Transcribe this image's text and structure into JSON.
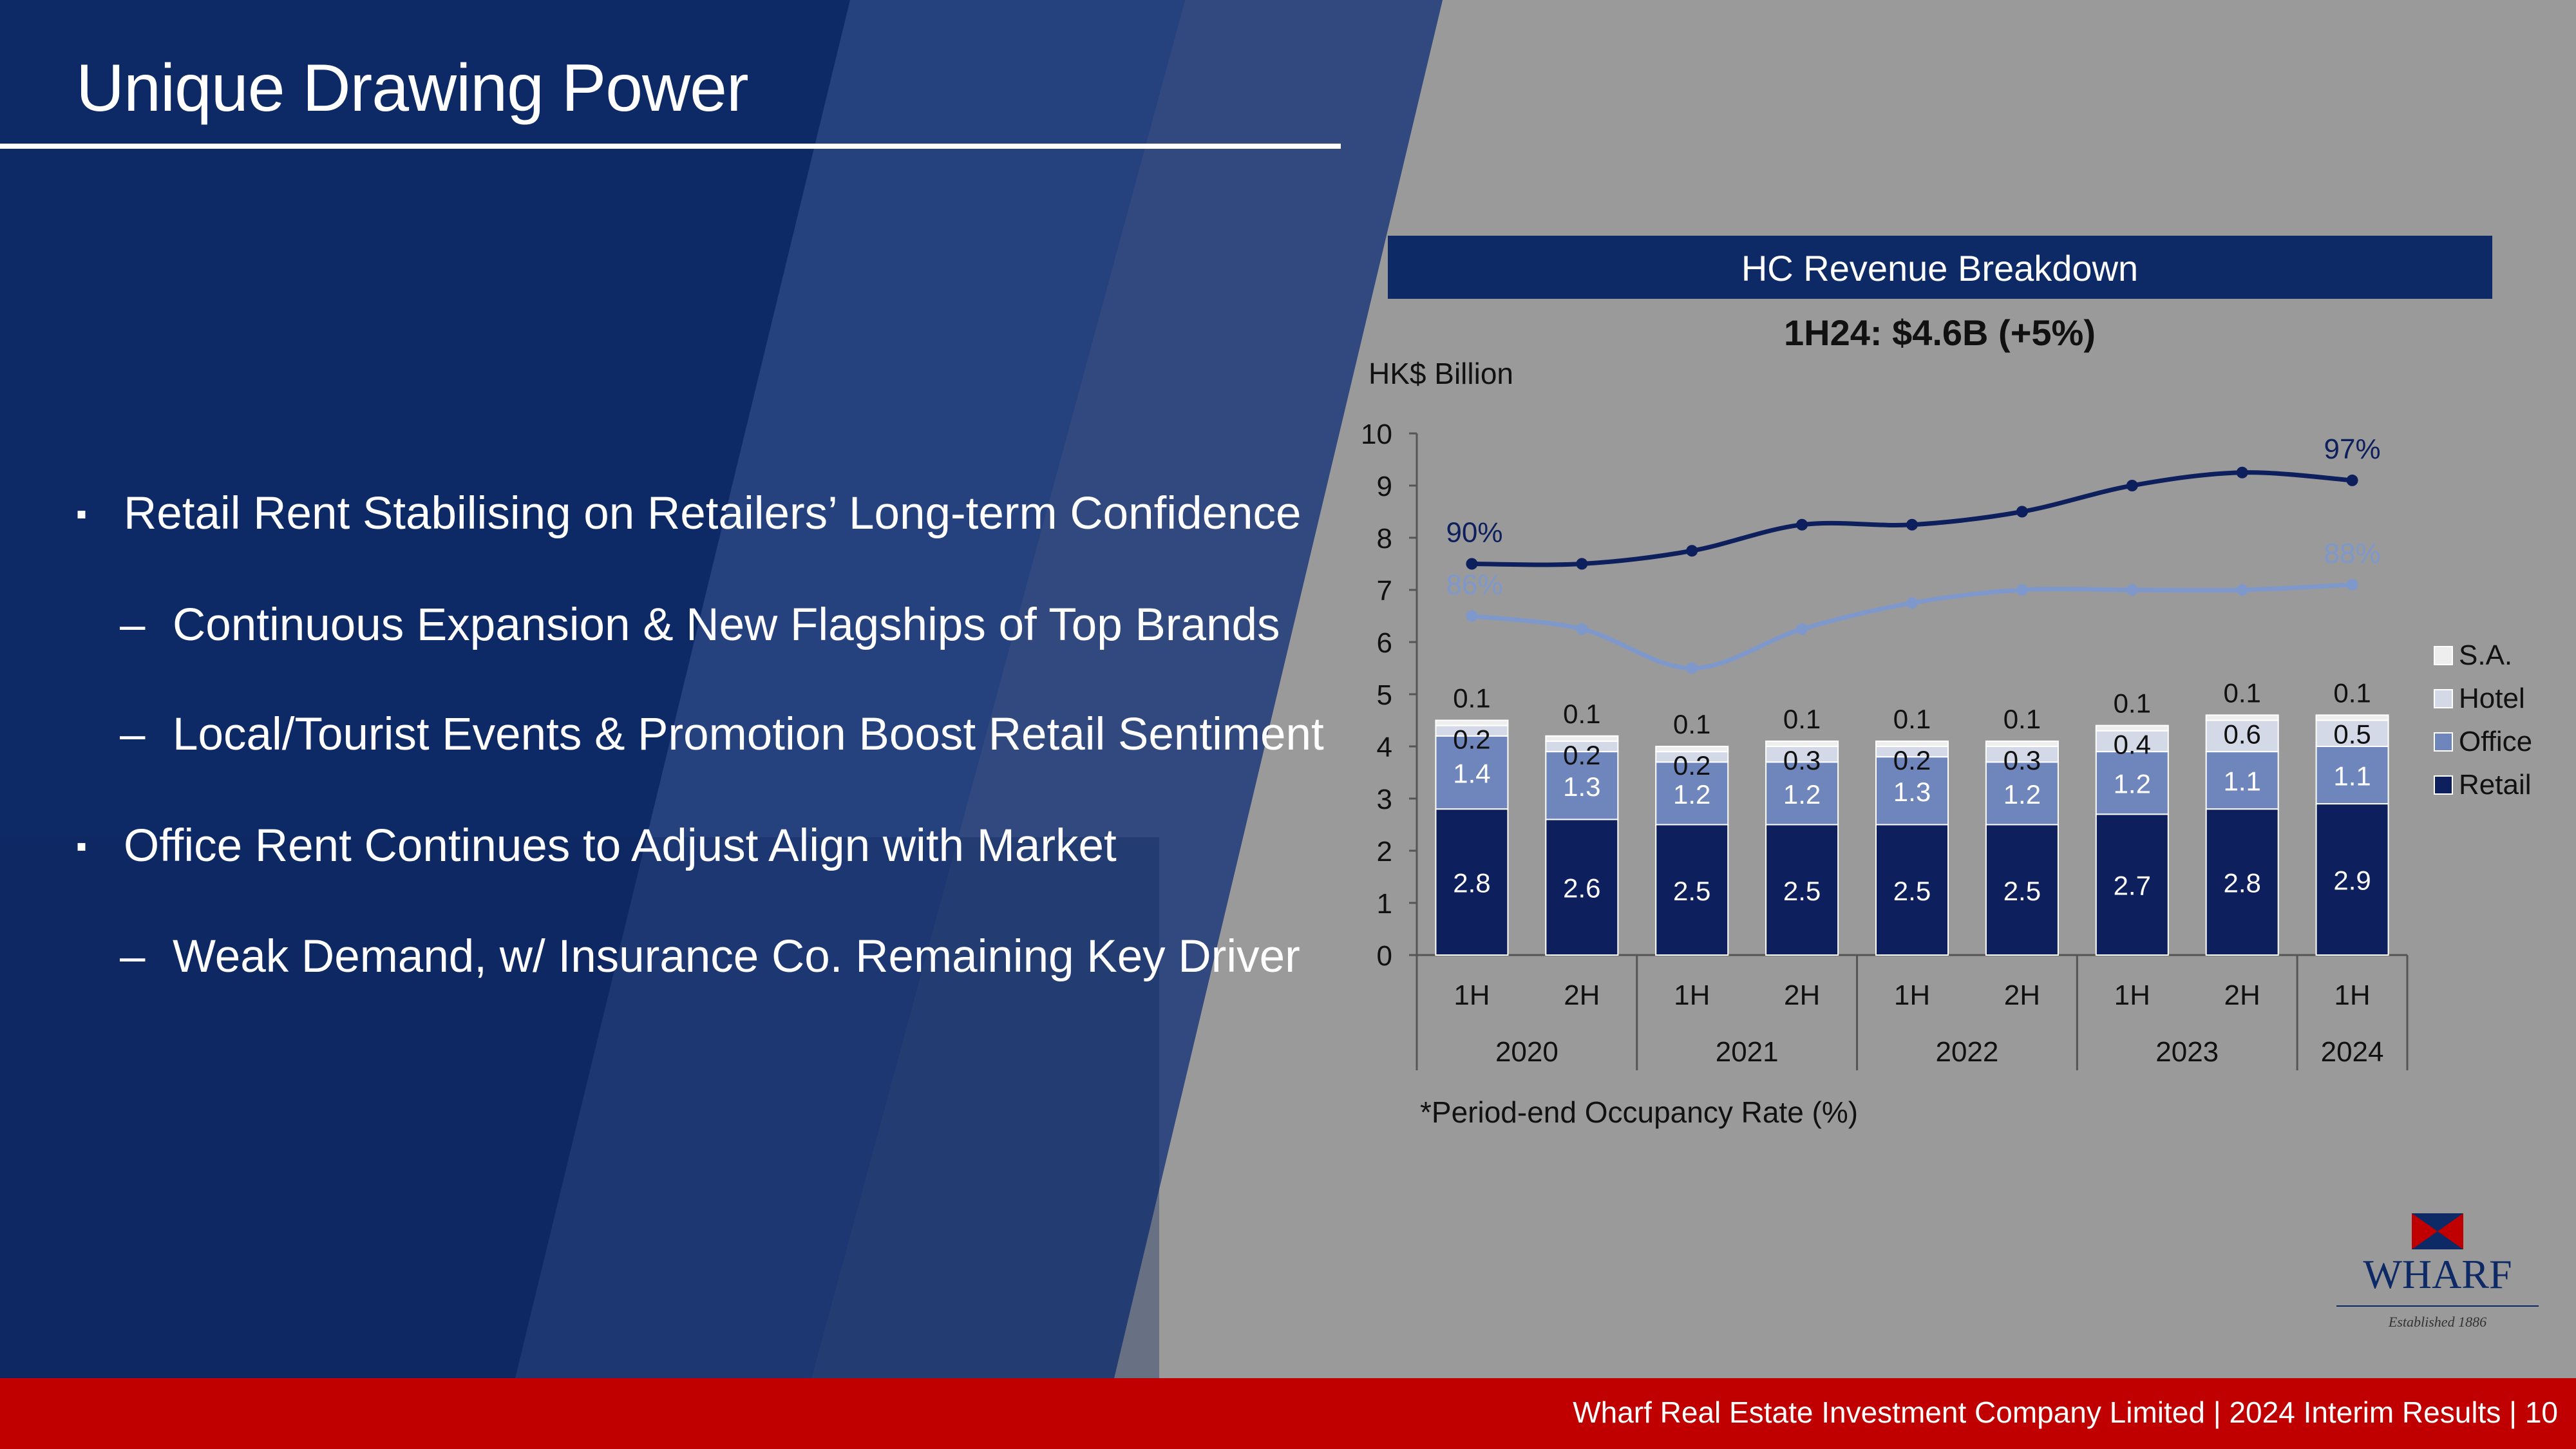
{
  "slide": {
    "title": "Unique Drawing Power",
    "bullets": [
      {
        "level": 1,
        "marker": "▪",
        "text": "Retail Rent Stabilising on Retailers’ Long-term Confidence"
      },
      {
        "level": 2,
        "marker": "–",
        "text": "Continuous Expansion & New Flagships of Top Brands"
      },
      {
        "level": 2,
        "marker": "–",
        "text": "Local/Tourist Events & Promotion Boost Retail Sentiment"
      },
      {
        "level": 1,
        "marker": "▪",
        "text": "Office Rent Continues to Adjust Align with Market"
      },
      {
        "level": 2,
        "marker": "–",
        "text": "Weak Demand, w/ Insurance Co. Remaining Key Driver"
      }
    ],
    "footer": "Wharf Real Estate Investment Company Limited | 2024 Interim Results |  10",
    "logo": {
      "name": "WHARF",
      "tagline": "Established 1886"
    },
    "colors": {
      "navy": "#0e2a66",
      "footer_red": "#c00000",
      "panel_gray": "#9a9a9a"
    }
  },
  "chart_data": {
    "type": "bar",
    "stacked": true,
    "panel_title": "HC Revenue Breakdown",
    "subtitle": "1H24: $4.6B (+5%)",
    "ylabel": "HK$ Billion",
    "ylim": [
      0,
      10
    ],
    "yticks": [
      0,
      1,
      2,
      3,
      4,
      5,
      6,
      7,
      8,
      9,
      10
    ],
    "categories": [
      "1H",
      "2H",
      "1H",
      "2H",
      "1H",
      "2H",
      "1H",
      "2H",
      "1H"
    ],
    "year_groups": [
      {
        "label": "2020",
        "span": 2
      },
      {
        "label": "2021",
        "span": 2
      },
      {
        "label": "2022",
        "span": 2
      },
      {
        "label": "2023",
        "span": 2
      },
      {
        "label": "2024",
        "span": 1
      }
    ],
    "series": [
      {
        "name": "Retail",
        "color": "#0d1f5c",
        "values": [
          2.8,
          2.6,
          2.5,
          2.5,
          2.5,
          2.5,
          2.7,
          2.8,
          2.9
        ]
      },
      {
        "name": "Office",
        "color": "#6f86bd",
        "values": [
          1.4,
          1.3,
          1.2,
          1.2,
          1.3,
          1.2,
          1.2,
          1.1,
          1.1
        ]
      },
      {
        "name": "Hotel",
        "color": "#d4d9e8",
        "values": [
          0.2,
          0.2,
          0.2,
          0.3,
          0.2,
          0.3,
          0.4,
          0.6,
          0.5
        ]
      },
      {
        "name": "S.A.",
        "color": "#eeeeee",
        "values": [
          0.1,
          0.1,
          0.1,
          0.1,
          0.1,
          0.1,
          0.1,
          0.1,
          0.1
        ]
      }
    ],
    "legend": {
      "placement": "right",
      "order": [
        "S.A.",
        "Hotel",
        "Office",
        "Retail"
      ]
    },
    "occupancy_lines": [
      {
        "color": "#0d1f5c",
        "axis_values": [
          7.5,
          7.5,
          7.75,
          8.25,
          8.25,
          8.5,
          9.0,
          9.25,
          9.1
        ],
        "start_label": "90%",
        "end_label": "97%"
      },
      {
        "color": "#7f98cc",
        "axis_values": [
          6.5,
          6.25,
          5.5,
          6.25,
          6.75,
          7.0,
          7.0,
          7.0,
          7.1
        ],
        "start_label": "86%",
        "end_label": "88%"
      }
    ],
    "note": "*Period-end Occupancy Rate (%)"
  }
}
